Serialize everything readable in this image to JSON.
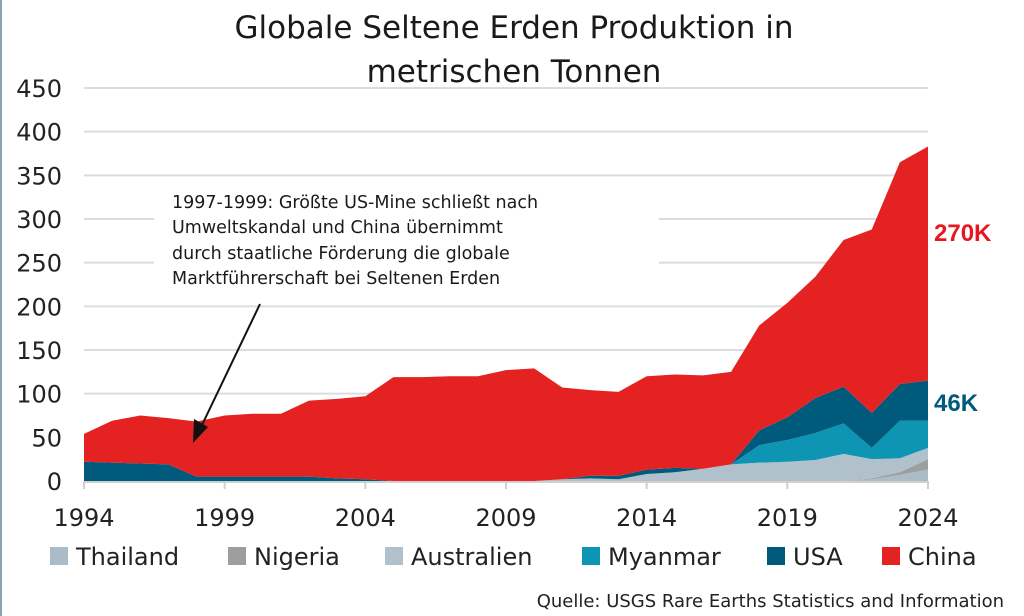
{
  "chart_data": {
    "type": "area",
    "stacked": true,
    "title": "Globale Seltene Erden Produktion in metrischen Tonnen",
    "title_lines": [
      "Globale Seltene Erden Produktion in",
      "metrischen Tonnen"
    ],
    "xlabel": "",
    "ylabel": "",
    "ylim": [
      0,
      450
    ],
    "xlim": [
      1994,
      2024
    ],
    "yticks": [
      0,
      50,
      100,
      150,
      200,
      250,
      300,
      350,
      400,
      450
    ],
    "xticks": [
      1994,
      1999,
      2004,
      2009,
      2014,
      2019,
      2024
    ],
    "grid": true,
    "legend_position": "bottom",
    "x": [
      1994,
      1995,
      1996,
      1997,
      1998,
      1999,
      2000,
      2001,
      2002,
      2003,
      2004,
      2005,
      2006,
      2007,
      2008,
      2009,
      2010,
      2011,
      2012,
      2013,
      2014,
      2015,
      2016,
      2017,
      2018,
      2019,
      2020,
      2021,
      2022,
      2023,
      2024
    ],
    "series": [
      {
        "name": "Thailand",
        "color": "#a9bcc8",
        "values": [
          0,
          0,
          0,
          0,
          0,
          0,
          0,
          0,
          0,
          0,
          0,
          0,
          0,
          0,
          0,
          0,
          0,
          0,
          0,
          0,
          0,
          0,
          0,
          0,
          0,
          0,
          0,
          0,
          2,
          7,
          13
        ]
      },
      {
        "name": "Nigeria",
        "color": "#9e9e9e",
        "values": [
          0,
          0,
          0,
          0,
          0,
          0,
          0,
          0,
          0,
          0,
          0,
          0,
          0,
          0,
          0,
          0,
          0,
          0,
          0,
          0,
          0,
          0,
          0,
          0,
          0,
          0,
          0,
          0,
          1,
          3,
          12
        ]
      },
      {
        "name": "Australien",
        "color": "#b0c1cc",
        "values": [
          0,
          0,
          0,
          0,
          0,
          0,
          0,
          0,
          0,
          0,
          0,
          0,
          0,
          0,
          0,
          0,
          0,
          2,
          3,
          2,
          8,
          10,
          14,
          19,
          21,
          22,
          24,
          31,
          22,
          16,
          13
        ]
      },
      {
        "name": "Myanmar",
        "color": "#0e95b3",
        "values": [
          0,
          0,
          0,
          0,
          0,
          0,
          0,
          0,
          0,
          0,
          0,
          0,
          0,
          0,
          0,
          0,
          0,
          0,
          0,
          0,
          0,
          0,
          0,
          0,
          20,
          25,
          31,
          35,
          13,
          43,
          31
        ]
      },
      {
        "name": "USA",
        "color": "#005a7c",
        "values": [
          22,
          21,
          20,
          19,
          5,
          5,
          5,
          5,
          5,
          3,
          2,
          0,
          0,
          0,
          0,
          0,
          0,
          0,
          3,
          4,
          5,
          5,
          0,
          0,
          17,
          26,
          40,
          42,
          40,
          42,
          46
        ]
      },
      {
        "name": "China",
        "color": "#e52222",
        "values": [
          32,
          48,
          55,
          53,
          63,
          70,
          72,
          72,
          87,
          91,
          95,
          119,
          119,
          120,
          120,
          127,
          129,
          105,
          98,
          96,
          107,
          107,
          107,
          106,
          120,
          131,
          139,
          168,
          210,
          254,
          268
        ]
      }
    ],
    "annotations": {
      "note_lines": [
        "1997-1999: Größte US-Mine schließt nach",
        "Umweltskandal und China übernimmt",
        "durch staatliche Förderung die globale",
        "Marktführerschaft bei Seltenen Erden"
      ],
      "arrow_target_year": 1998,
      "end_label_china": "270K",
      "end_label_china_color": "#e8161e",
      "end_label_usa": "46K",
      "end_label_usa_color": "#005a7c"
    },
    "source": "Quelle: USGS Rare Earths Statistics and Information"
  }
}
